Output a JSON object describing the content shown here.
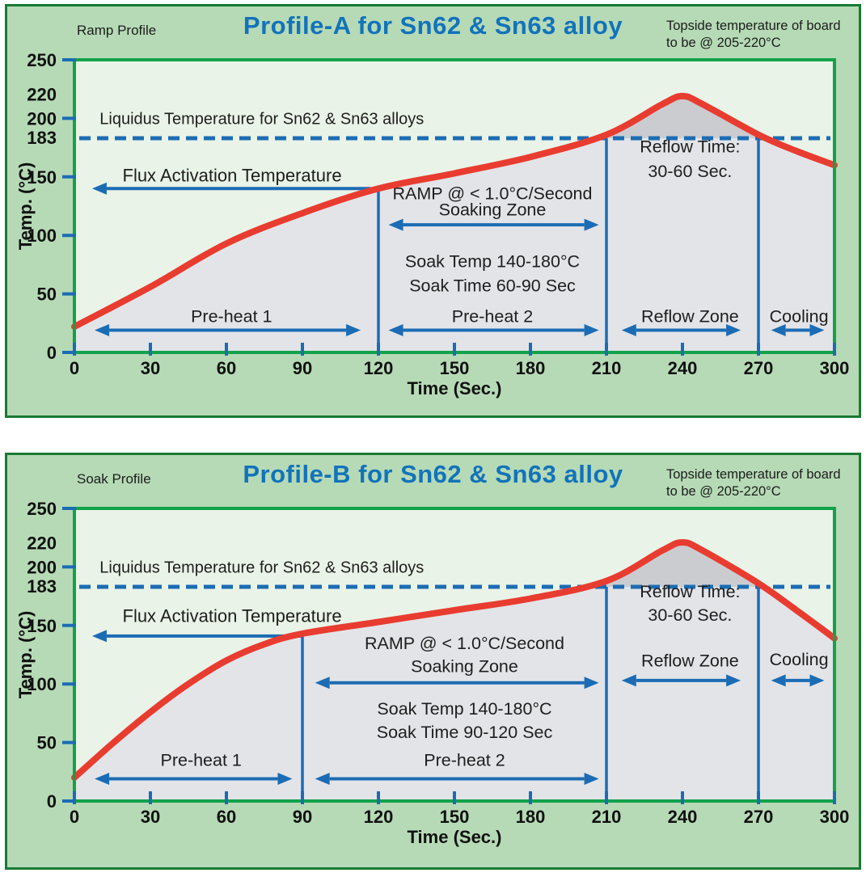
{
  "colors": {
    "panel_bg": "#b6dab6",
    "panel_border": "#1a7a33",
    "plot_bg": "#eaf3e7",
    "frame_green": "#12a24b",
    "blue": "#1b6cb4",
    "red": "#e93c30",
    "under_fill": "#e3e4e8",
    "cap_fill": "#cbccd0",
    "text": "#1e1e1e",
    "title_blue": "#1273ba"
  },
  "chart_data": [
    {
      "id": "A",
      "type": "line",
      "corner_label": "Ramp Profile",
      "title": "Profile-A for Sn62 & Sn63 alloy",
      "note_line1": "Topside temperature of board",
      "note_line2": "to be @ 205-220°C",
      "xlabel": "Time (Sec.)",
      "ylabel": "Temp. (°C)",
      "xlim": [
        0,
        300
      ],
      "ylim": [
        0,
        250
      ],
      "x_ticks": [
        0,
        30,
        60,
        90,
        120,
        150,
        180,
        210,
        240,
        270,
        300
      ],
      "y_ticks": [
        0,
        50,
        100,
        150,
        200,
        250
      ],
      "y_extra_labels": [
        220,
        183
      ],
      "liquidus": {
        "value": 183,
        "label": "Liquidus Temperature for Sn62 & Sn63 alloys"
      },
      "zones": [
        {
          "t": 120,
          "top": 140
        },
        {
          "t": 210,
          "top": 183
        },
        {
          "t": 270,
          "top": 183
        }
      ],
      "curve": [
        [
          0,
          22
        ],
        [
          30,
          56
        ],
        [
          60,
          93
        ],
        [
          90,
          119
        ],
        [
          120,
          140
        ],
        [
          150,
          153
        ],
        [
          180,
          167
        ],
        [
          210,
          186
        ],
        [
          232,
          212
        ],
        [
          240,
          219
        ],
        [
          248,
          212
        ],
        [
          270,
          186
        ],
        [
          285,
          172
        ],
        [
          300,
          160
        ]
      ],
      "annotations": [
        {
          "kind": "text",
          "label": "Liquidus Temperature for Sn62 & Sn63 alloys",
          "t": 10,
          "T": 195,
          "anchor": "start",
          "size": 20
        },
        {
          "kind": "text",
          "label": "Flux Activation Temperature",
          "t": 19,
          "T": 146,
          "anchor": "start",
          "size": 22
        },
        {
          "kind": "arrow",
          "t1": 117,
          "T1": 140,
          "t2": 7,
          "T2": 140
        },
        {
          "kind": "text",
          "label": "RAMP @ < 1.0°C/Second",
          "t": 165,
          "T": 131
        },
        {
          "kind": "text",
          "label": "Soaking Zone",
          "t": 165,
          "T": 117
        },
        {
          "kind": "arrow",
          "t1": 124,
          "T1": 109,
          "t2": 207,
          "T2": 109,
          "double": true
        },
        {
          "kind": "text",
          "label": "Soak Temp 140-180°C",
          "t": 165,
          "T": 73
        },
        {
          "kind": "text",
          "label": "Soak Time 60-90 Sec",
          "t": 165,
          "T": 52
        },
        {
          "kind": "text",
          "label": "Pre-heat 1",
          "t": 62,
          "T": 26
        },
        {
          "kind": "arrow",
          "t1": 8,
          "T1": 19,
          "t2": 113,
          "T2": 19,
          "double": true
        },
        {
          "kind": "text",
          "label": "Pre-heat 2",
          "t": 165,
          "T": 26
        },
        {
          "kind": "arrow",
          "t1": 124,
          "T1": 19,
          "t2": 207,
          "T2": 19,
          "double": true
        },
        {
          "kind": "text",
          "label": "Reflow Zone",
          "t": 243,
          "T": 26
        },
        {
          "kind": "arrow",
          "t1": 216,
          "T1": 19,
          "t2": 263,
          "T2": 19,
          "double": true
        },
        {
          "kind": "text",
          "label": "Cooling",
          "t": 286,
          "T": 26
        },
        {
          "kind": "arrow",
          "t1": 275,
          "T1": 19,
          "t2": 296,
          "T2": 19,
          "double": true
        },
        {
          "kind": "text",
          "label": "Reflow Time:",
          "t": 243,
          "T": 171
        },
        {
          "kind": "text",
          "label": "30-60 Sec.",
          "t": 243,
          "T": 150
        }
      ]
    },
    {
      "id": "B",
      "type": "line",
      "corner_label": "Soak Profile",
      "title": "Profile-B for Sn62 & Sn63 alloy",
      "note_line1": "Topside temperature of board",
      "note_line2": "to be @ 205-220°C",
      "xlabel": "Time (Sec.)",
      "ylabel": "Temp. (°C)",
      "xlim": [
        0,
        300
      ],
      "ylim": [
        0,
        250
      ],
      "x_ticks": [
        0,
        30,
        60,
        90,
        120,
        150,
        180,
        210,
        240,
        270,
        300
      ],
      "y_ticks": [
        0,
        50,
        100,
        150,
        200,
        250
      ],
      "y_extra_labels": [
        220,
        183
      ],
      "liquidus": {
        "value": 183,
        "label": "Liquidus Temperature for Sn62 & Sn63 alloys"
      },
      "zones": [
        {
          "t": 90,
          "top": 143
        },
        {
          "t": 210,
          "top": 183
        },
        {
          "t": 270,
          "top": 183
        }
      ],
      "curve": [
        [
          0,
          20
        ],
        [
          15,
          49
        ],
        [
          30,
          76
        ],
        [
          45,
          100
        ],
        [
          60,
          120
        ],
        [
          75,
          134
        ],
        [
          90,
          143
        ],
        [
          120,
          153
        ],
        [
          150,
          163
        ],
        [
          180,
          173
        ],
        [
          210,
          188
        ],
        [
          232,
          214
        ],
        [
          240,
          221
        ],
        [
          248,
          214
        ],
        [
          270,
          186
        ],
        [
          285,
          163
        ],
        [
          300,
          139
        ]
      ],
      "annotations": [
        {
          "kind": "text",
          "label": "Liquidus Temperature for Sn62 & Sn63 alloys",
          "t": 10,
          "T": 195,
          "anchor": "start",
          "size": 20
        },
        {
          "kind": "text",
          "label": "Flux Activation Temperature",
          "t": 19,
          "T": 153,
          "anchor": "start",
          "size": 22
        },
        {
          "kind": "arrow",
          "t1": 90,
          "T1": 141,
          "t2": 7,
          "T2": 141
        },
        {
          "kind": "text",
          "label": "RAMP @ < 1.0°C/Second",
          "t": 154,
          "T": 130
        },
        {
          "kind": "text",
          "label": "Soaking Zone",
          "t": 154,
          "T": 110
        },
        {
          "kind": "arrow",
          "t1": 95,
          "T1": 101,
          "t2": 207,
          "T2": 101,
          "double": true
        },
        {
          "kind": "text",
          "label": "Soak Temp 140-180°C",
          "t": 154,
          "T": 74
        },
        {
          "kind": "text",
          "label": "Soak Time 90-120 Sec",
          "t": 154,
          "T": 54
        },
        {
          "kind": "text",
          "label": "Pre-heat 1",
          "t": 50,
          "T": 30
        },
        {
          "kind": "arrow",
          "t1": 8,
          "T1": 19,
          "t2": 86,
          "T2": 19,
          "double": true
        },
        {
          "kind": "text",
          "label": "Pre-heat 2",
          "t": 154,
          "T": 30
        },
        {
          "kind": "arrow",
          "t1": 95,
          "T1": 19,
          "t2": 207,
          "T2": 19,
          "double": true
        },
        {
          "kind": "text",
          "label": "Reflow Zone",
          "t": 243,
          "T": 115
        },
        {
          "kind": "arrow",
          "t1": 216,
          "T1": 103,
          "t2": 263,
          "T2": 103,
          "double": true
        },
        {
          "kind": "text",
          "label": "Cooling",
          "t": 286,
          "T": 116
        },
        {
          "kind": "arrow",
          "t1": 275,
          "T1": 103,
          "t2": 296,
          "T2": 103,
          "double": true
        },
        {
          "kind": "text",
          "label": "Reflow Time:",
          "t": 243,
          "T": 174
        },
        {
          "kind": "text",
          "label": "30-60 Sec.",
          "t": 243,
          "T": 154
        }
      ]
    }
  ]
}
